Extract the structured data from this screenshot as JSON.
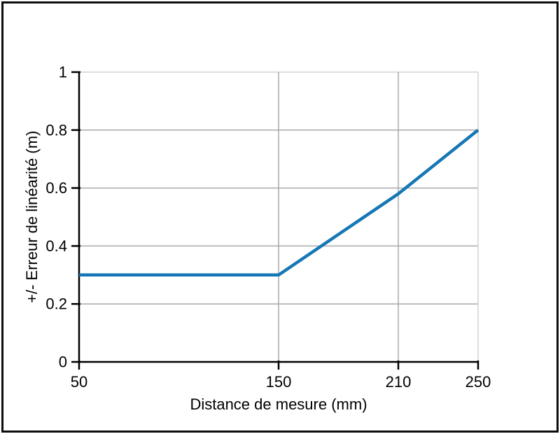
{
  "chart_data": {
    "type": "line",
    "title": "",
    "xlabel": "Distance de mesure (mm)",
    "ylabel": "+/- Erreur de linéarité (m)",
    "x": [
      50,
      150,
      210,
      250
    ],
    "y": [
      0.3,
      0.3,
      0.58,
      0.8
    ],
    "series": [
      {
        "name": "Erreur de linéarité",
        "x": [
          50,
          150,
          210,
          250
        ],
        "y": [
          0.3,
          0.3,
          0.58,
          0.8
        ]
      }
    ],
    "xticks": [
      50,
      150,
      210,
      250
    ],
    "xtick_labels": [
      "50",
      "150",
      "210",
      "250"
    ],
    "yticks": [
      0,
      0.2,
      0.4,
      0.6,
      0.8,
      1
    ],
    "ytick_labels": [
      "0",
      "0.2",
      "0.4",
      "0.6",
      "0.8",
      "1"
    ],
    "xlim": [
      50,
      250
    ],
    "ylim": [
      0,
      1
    ],
    "grid": true,
    "legend": "none",
    "line_color": "#1577b5",
    "grid_color": "#a9a9a9",
    "grid_light_color": "#d2d2d2",
    "axis_color": "#000000",
    "frame_color": "#0d0d0d",
    "background_color": "#ffffff"
  }
}
